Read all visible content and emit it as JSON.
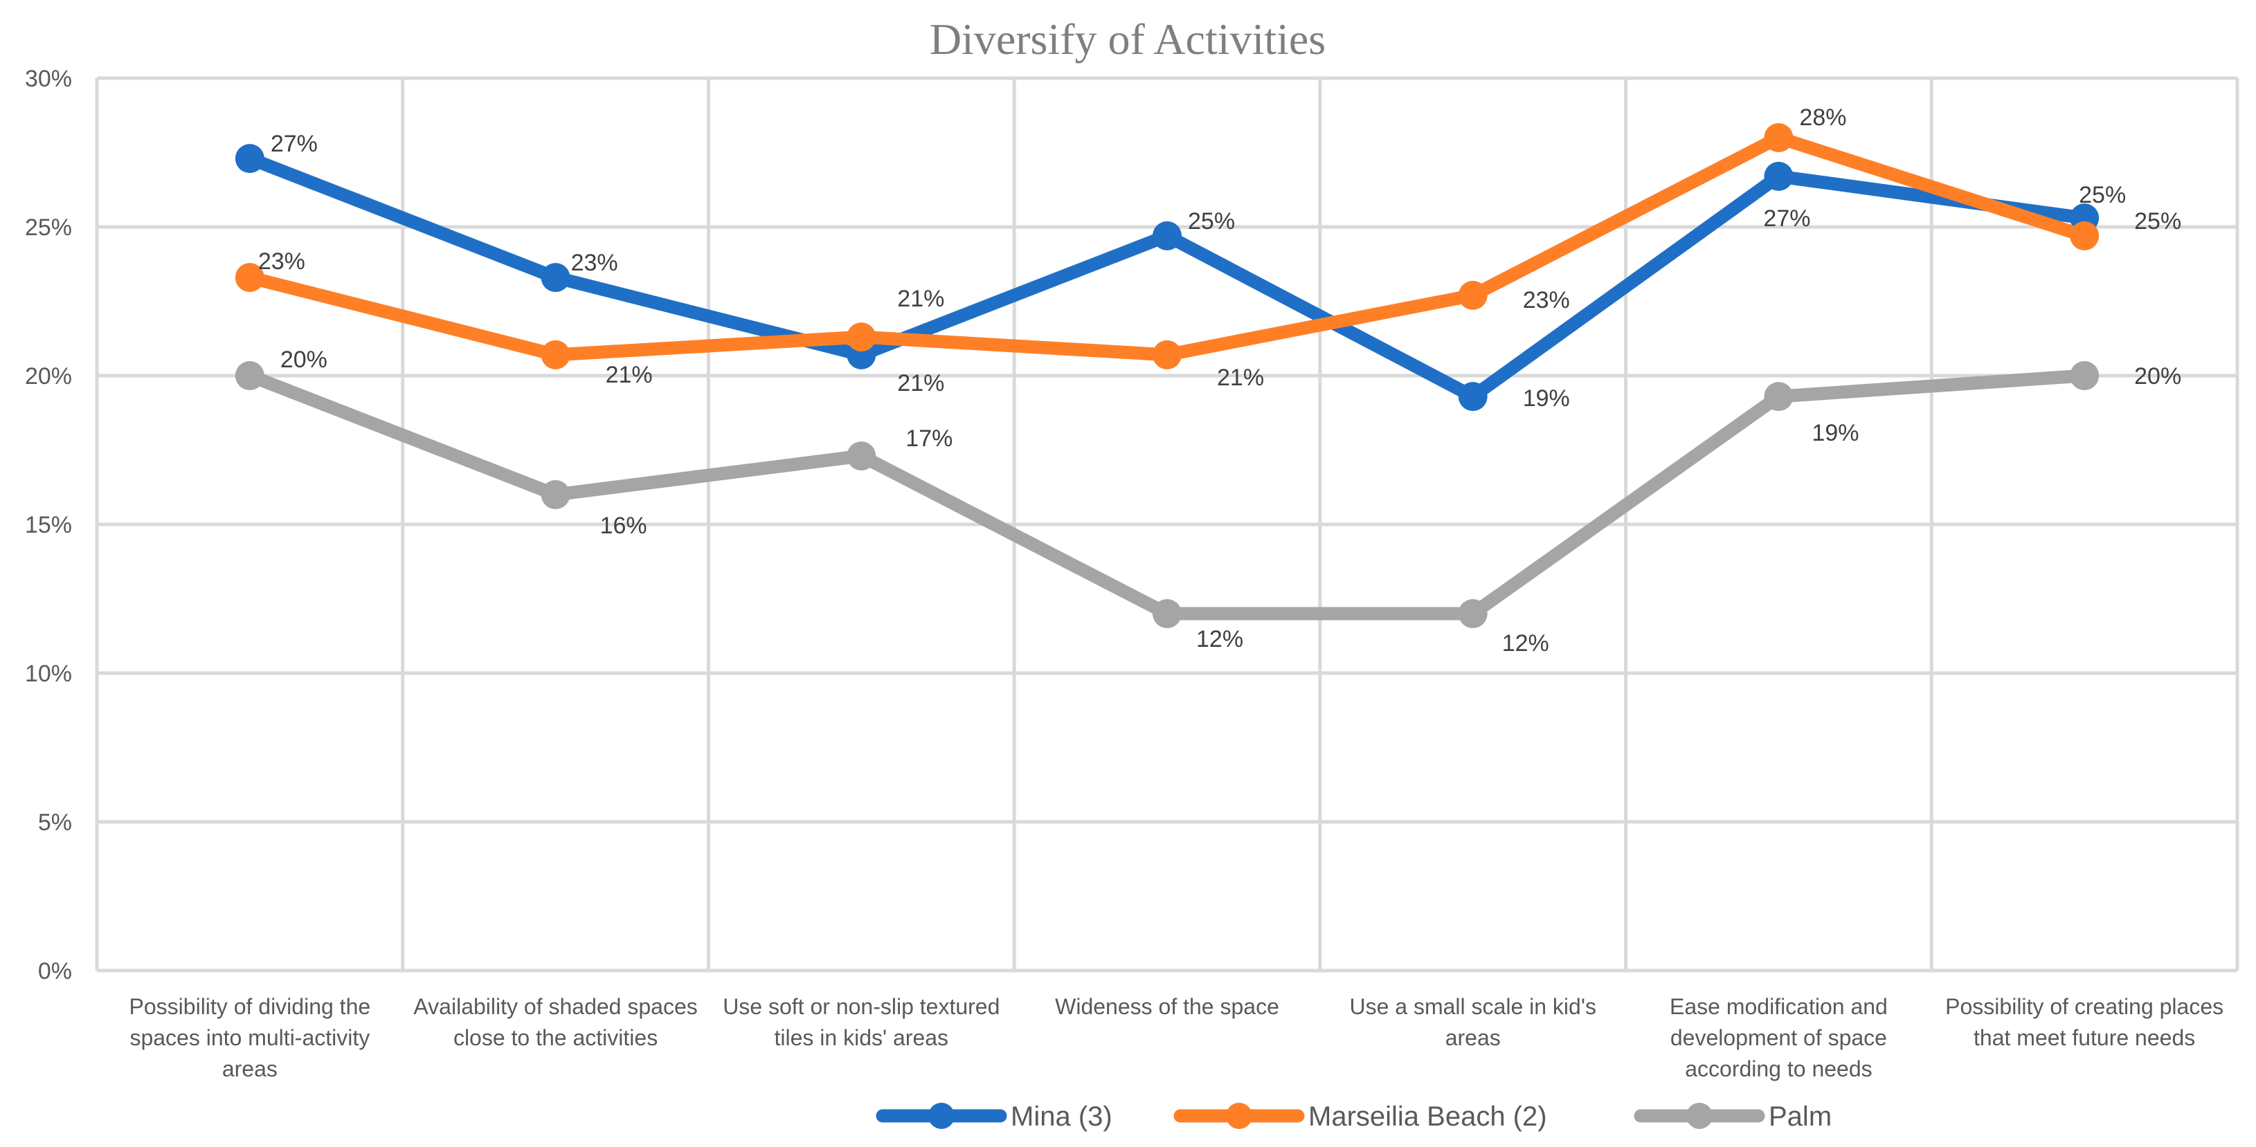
{
  "chart_data": {
    "type": "line",
    "title": "Diversify of Activities",
    "xlabel": "",
    "ylabel": "",
    "ylim": [
      0,
      30
    ],
    "yticks": [
      "0%",
      "5%",
      "10%",
      "15%",
      "20%",
      "25%",
      "30%"
    ],
    "ytick_values": [
      0,
      5,
      10,
      15,
      20,
      25,
      30
    ],
    "grid": true,
    "legend_position": "bottom",
    "categories": [
      [
        "Possibility of dividing the",
        "spaces into multi-activity",
        "areas"
      ],
      [
        "Availability of shaded spaces",
        "close to the activities"
      ],
      [
        "Use soft or non-slip textured",
        "tiles in kids' areas"
      ],
      [
        "Wideness of the space"
      ],
      [
        "Use a small scale in kid's",
        "areas"
      ],
      [
        "Ease modification and",
        "development of space",
        "according to needs"
      ],
      [
        "Possibility of creating places",
        "that meet future needs"
      ]
    ],
    "series": [
      {
        "name": "Mina (3)",
        "color": "#1f6fc6",
        "values": [
          27.3,
          23.3,
          20.7,
          24.7,
          19.3,
          26.7,
          25.3
        ],
        "labels": [
          "27%",
          "23%",
          "21%",
          "25%",
          "19%",
          "27%",
          "25%"
        ]
      },
      {
        "name": "Marseilia Beach (2)",
        "color": "#ff7f27",
        "values": [
          23.3,
          20.7,
          21.3,
          20.7,
          22.7,
          28.0,
          24.7
        ],
        "labels": [
          "23%",
          "21%",
          "21%",
          "21%",
          "23%",
          "28%",
          "25%"
        ]
      },
      {
        "name": "Palm",
        "color": "#a5a5a5",
        "values": [
          20.0,
          16.0,
          17.3,
          12.0,
          12.0,
          19.3,
          20.0
        ],
        "labels": [
          "20%",
          "16%",
          "17%",
          "12%",
          "12%",
          "19%",
          "20%"
        ]
      }
    ]
  }
}
